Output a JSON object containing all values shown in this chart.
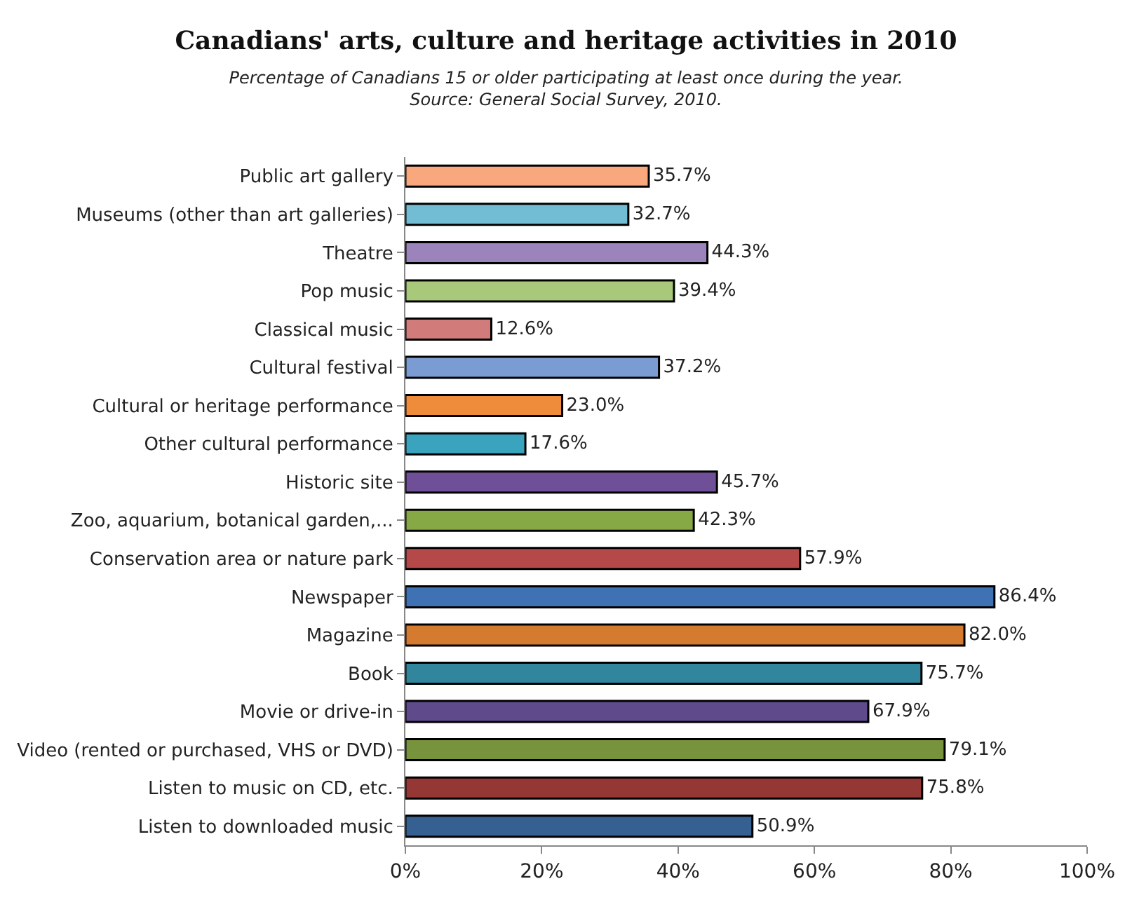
{
  "chart_data": {
    "type": "bar",
    "orientation": "horizontal",
    "title": "Canadians' arts, culture and heritage activities in 2010",
    "subtitle": "Percentage of Canadians 15 or older participating at least once during the year.\nSource: General Social Survey, 2010.",
    "categories": [
      "Public art gallery",
      "Museums (other than art galleries)",
      "Theatre",
      "Pop music",
      "Classical music",
      "Cultural festival",
      "Cultural or heritage performance",
      "Other cultural performance",
      "Historic site",
      "Zoo, aquarium, botanical garden,...",
      "Conservation area or nature park",
      "Newspaper",
      "Magazine",
      "Book",
      "Movie or drive-in",
      "Video (rented or purchased, VHS or DVD)",
      "Listen to music on CD, etc.",
      "Listen to downloaded music"
    ],
    "values": [
      35.7,
      32.7,
      44.3,
      39.4,
      12.6,
      37.2,
      23.0,
      17.6,
      45.7,
      42.3,
      57.9,
      86.4,
      82.0,
      75.7,
      67.9,
      79.1,
      75.8,
      50.9
    ],
    "value_labels": [
      "35.7%",
      "32.7%",
      "44.3%",
      "39.4%",
      "12.6%",
      "37.2%",
      "23.0%",
      "17.6%",
      "45.7%",
      "42.3%",
      "57.9%",
      "86.4%",
      "82.0%",
      "75.7%",
      "67.9%",
      "79.1%",
      "75.8%",
      "50.9%"
    ],
    "colors": [
      "#f9a77c",
      "#72bcd4",
      "#9b83bb",
      "#a9c97a",
      "#d27b7b",
      "#7b9cd2",
      "#ef8c3c",
      "#3aa3bd",
      "#6e4f98",
      "#86a845",
      "#b54848",
      "#3f72b5",
      "#d57b30",
      "#31859c",
      "#5f4a8b",
      "#77933c",
      "#953735",
      "#376092"
    ],
    "xlim": [
      0,
      100
    ],
    "xticks": [
      {
        "value": 0,
        "label": "0%"
      },
      {
        "value": 20,
        "label": "20%"
      },
      {
        "value": 40,
        "label": "40%"
      },
      {
        "value": 60,
        "label": "60%"
      },
      {
        "value": 80,
        "label": "80%"
      },
      {
        "value": 100,
        "label": "100%"
      }
    ],
    "legend": false
  }
}
